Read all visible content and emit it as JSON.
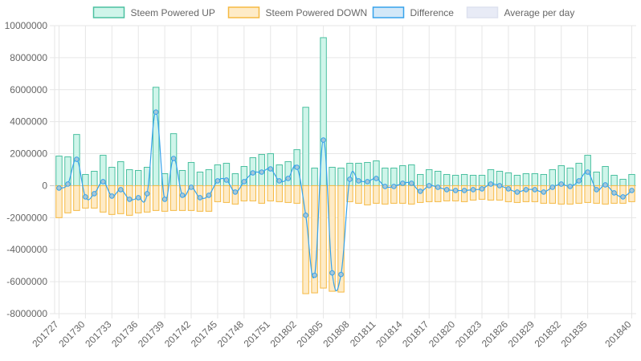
{
  "chart_data": {
    "type": "bar",
    "title": "",
    "xlabel": "",
    "ylabel": "",
    "ylim": [
      -8000000,
      10000000
    ],
    "y_ticks": [
      10000000,
      8000000,
      6000000,
      4000000,
      2000000,
      0,
      -2000000,
      -4000000,
      -6000000,
      -8000000
    ],
    "y_tick_labels": [
      "10000000",
      "8000000",
      "6000000",
      "4000000",
      "2000000",
      "0",
      "-2000000",
      "-4000000",
      "-6000000",
      "-8000000"
    ],
    "grid": true,
    "legend_position": "top",
    "categories": [
      "201727",
      "201728",
      "201729",
      "201730",
      "201731",
      "201732",
      "201733",
      "201734",
      "201735",
      "201736",
      "201737",
      "201738",
      "201739",
      "201740",
      "201741",
      "201742",
      "201743",
      "201744",
      "201745",
      "201746",
      "201747",
      "201748",
      "201749",
      "201750",
      "201751",
      "201752",
      "201801",
      "201802",
      "201803",
      "201804",
      "201805",
      "201806",
      "201807",
      "201808",
      "201809",
      "201810",
      "201811",
      "201812",
      "201813",
      "201814",
      "201815",
      "201816",
      "201817",
      "201818",
      "201819",
      "201820",
      "201821",
      "201822",
      "201823",
      "201824",
      "201825",
      "201826",
      "201827",
      "201828",
      "201829",
      "201830",
      "201831",
      "201832",
      "201833",
      "201834",
      "201835",
      "201836",
      "201837",
      "201838",
      "201839",
      "201840"
    ],
    "x_tick_labels": [
      "201727",
      "201730",
      "201733",
      "201736",
      "201739",
      "201742",
      "201745",
      "201748",
      "201751",
      "201802",
      "201805",
      "201808",
      "201811",
      "201814",
      "201817",
      "201820",
      "201823",
      "201826",
      "201829",
      "201832",
      "201835",
      "201840"
    ],
    "series": [
      {
        "name": "Steem Powered UP",
        "type": "bar",
        "color": "#4bc0a0",
        "fill": "#cff5ea",
        "values": [
          1850000,
          1800000,
          3200000,
          700000,
          900000,
          1900000,
          1150000,
          1500000,
          1000000,
          950000,
          1150000,
          6150000,
          750000,
          3250000,
          950000,
          1450000,
          850000,
          1000000,
          1300000,
          1400000,
          750000,
          1200000,
          1750000,
          1950000,
          2000000,
          1300000,
          1500000,
          2250000,
          4900000,
          1100000,
          9250000,
          1150000,
          1100000,
          1400000,
          1400000,
          1450000,
          1550000,
          1100000,
          1100000,
          1250000,
          1300000,
          700000,
          1000000,
          900000,
          700000,
          650000,
          700000,
          650000,
          650000,
          1000000,
          900000,
          800000,
          650000,
          750000,
          750000,
          700000,
          1000000,
          1250000,
          1100000,
          1400000,
          1900000,
          850000,
          1200000,
          650000,
          400000,
          700000
        ]
      },
      {
        "name": "Steem Powered DOWN",
        "type": "bar",
        "color": "#f5b942",
        "fill": "#feebc7",
        "values": [
          -2000000,
          -1700000,
          -1550000,
          -1400000,
          -1400000,
          -1650000,
          -1800000,
          -1750000,
          -1850000,
          -1700000,
          -1650000,
          -1550000,
          -1600000,
          -1550000,
          -1550000,
          -1550000,
          -1600000,
          -1600000,
          -1000000,
          -1050000,
          -1150000,
          -950000,
          -950000,
          -1100000,
          -950000,
          -1000000,
          -1050000,
          -1100000,
          -6750000,
          -6700000,
          -6400000,
          -6600000,
          -6650000,
          -1000000,
          -1100000,
          -1200000,
          -1100000,
          -1150000,
          -1100000,
          -1100000,
          -1150000,
          -1050000,
          -1000000,
          -1000000,
          -950000,
          -950000,
          -1000000,
          -900000,
          -850000,
          -900000,
          -900000,
          -1000000,
          -1050000,
          -1000000,
          -1000000,
          -1100000,
          -1100000,
          -1150000,
          -1150000,
          -1100000,
          -1050000,
          -1100000,
          -1150000,
          -1100000,
          -1100000,
          -1000000
        ]
      },
      {
        "name": "Difference",
        "type": "line",
        "color": "#36a2eb",
        "fill": "#d3e8f8",
        "point_fill": "#a8c8d8",
        "values": [
          -150000,
          100000,
          1650000,
          -700000,
          -500000,
          250000,
          -650000,
          -250000,
          -850000,
          -750000,
          -500000,
          4600000,
          -850000,
          1700000,
          -600000,
          -100000,
          -750000,
          -600000,
          300000,
          350000,
          -400000,
          250000,
          800000,
          850000,
          1050000,
          300000,
          450000,
          1150000,
          -1850000,
          -5600000,
          2850000,
          -5450000,
          -5550000,
          400000,
          300000,
          250000,
          450000,
          -50000,
          -50000,
          150000,
          150000,
          -350000,
          0,
          -100000,
          -250000,
          -300000,
          -300000,
          -250000,
          -200000,
          100000,
          0,
          -200000,
          -400000,
          -250000,
          -250000,
          -400000,
          -100000,
          100000,
          -50000,
          300000,
          850000,
          -250000,
          50000,
          -450000,
          -700000,
          -300000
        ]
      }
    ],
    "legend": [
      {
        "label": "Steem Powered UP",
        "fill": "#cff5ea",
        "stroke": "#4bc0a0"
      },
      {
        "label": "Steem Powered DOWN",
        "fill": "#feebc7",
        "stroke": "#f5b942"
      },
      {
        "label": "Difference",
        "fill": "#d3e8f8",
        "stroke": "#36a2eb"
      },
      {
        "label": "Average per day",
        "fill": "#e8ebf6",
        "stroke": "#dde1ef"
      }
    ]
  }
}
